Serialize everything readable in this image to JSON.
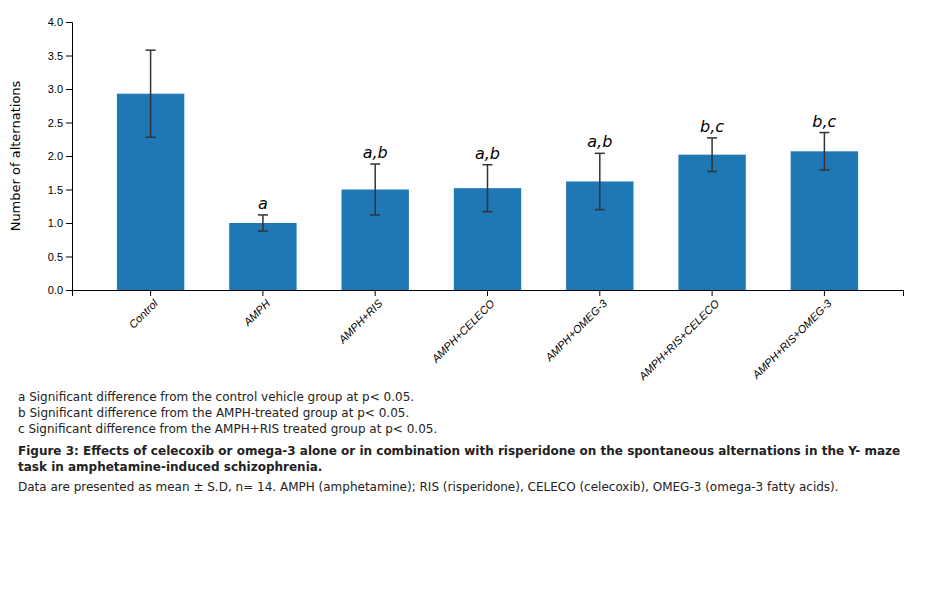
{
  "chart_data": {
    "type": "bar",
    "categories": [
      "Control",
      "AMPH",
      "AMPH+RIS",
      "AMPH+CELECO",
      "AMPH+OMEG-3",
      "AMPH+RIS+CELECO",
      "AMPH+RIS+OMEG-3"
    ],
    "values": [
      2.93,
      1.0,
      1.5,
      1.52,
      1.62,
      2.02,
      2.07
    ],
    "errors": [
      0.65,
      0.12,
      0.38,
      0.35,
      0.42,
      0.25,
      0.28
    ],
    "significance_labels": [
      null,
      "a",
      "a,b",
      "a,b",
      "a,b",
      "b,c",
      "b,c"
    ],
    "ylabel": "Number of alternations",
    "ylim": [
      0,
      4.0
    ],
    "yticks": [
      {
        "value": 0,
        "label": "0.0"
      },
      0.5,
      {
        "value": 1,
        "label": "1.0"
      },
      1.5,
      {
        "value": 2,
        "label": "2.0"
      },
      2.5,
      {
        "value": 3,
        "label": "3.0"
      },
      3.5,
      {
        "value": 4,
        "label": "4.0"
      }
    ],
    "grid": false,
    "annotations": [
      "a Significant difference from the control vehicle group at p< 0.05.",
      "b Significant difference from the AMPH-treated group at p< 0.05.",
      "c Significant difference from the AMPH+RIS treated group at p< 0.05."
    ],
    "caption": [
      "Figure 3: Effects of celecoxib or omega-3 alone or in combination with risperidone on the spontaneous alternations in the Y- maze task in amphetamine-induced schizophrenia.",
      " Data are presented as mean ± S.D, n= 14. AMPH (amphetamine); RIS (risperidone), CELECO (celecoxib), OMEG-3 (omega-3 fatty acids)."
    ]
  }
}
